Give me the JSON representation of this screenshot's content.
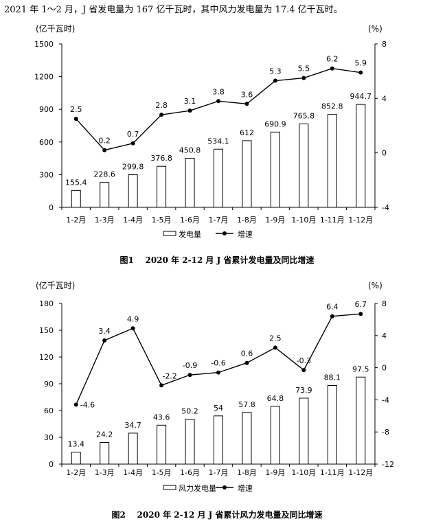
{
  "intro_text": "2021 年 1～2 月，J 省发电量为 167 亿千瓦时，其中风力发电量为 17.4 亿千瓦时。",
  "chart_data": [
    {
      "type": "bar+line",
      "title": "图1    2020 年 2-12 月 J 省累计发电量及同比增速",
      "left_unit": "(亿千瓦时)",
      "right_unit": "(%)",
      "categories": [
        "1-2月",
        "1-3月",
        "1-4月",
        "1-5月",
        "1-6月",
        "1-7月",
        "1-8月",
        "1-9月",
        "1-10月",
        "1-11月",
        "1-12月"
      ],
      "series": [
        {
          "name": "发电量",
          "kind": "bar",
          "axis": "left",
          "values": [
            155.4,
            228.6,
            299.8,
            376.8,
            450.8,
            534.1,
            612,
            690.9,
            765.8,
            852.8,
            944.7
          ],
          "labels": [
            "155.4",
            "228.6",
            "299.8",
            "376.8",
            "450.8",
            "534.1",
            "612",
            "690.9",
            "765.8",
            "852.8",
            "944.7"
          ]
        },
        {
          "name": "增速",
          "kind": "line",
          "axis": "right",
          "values": [
            2.5,
            0.2,
            0.7,
            2.8,
            3.1,
            3.8,
            3.6,
            5.3,
            5.5,
            6.2,
            5.9
          ],
          "labels": [
            "2.5",
            "0.2",
            "0.7",
            "2.8",
            "3.1",
            "3.8",
            "3.6",
            "5.3",
            "5.5",
            "6.2",
            "5.9"
          ]
        }
      ],
      "y_left": {
        "range": [
          0,
          1500
        ],
        "ticks": [
          "0",
          "300",
          "600",
          "900",
          "1200",
          "1500"
        ]
      },
      "y_right": {
        "range": [
          -4,
          8
        ],
        "ticks": [
          "-4",
          "0",
          "4",
          "8"
        ]
      },
      "legend": "bottom-center",
      "grid": false
    },
    {
      "type": "bar+line",
      "title": "图2    2020 年 2-12 月 J 省累计风力发电量及同比增速",
      "left_unit": "(亿千瓦时)",
      "right_unit": "(%)",
      "categories": [
        "1-2月",
        "1-3月",
        "1-4月",
        "1-5月",
        "1-6月",
        "1-7月",
        "1-8月",
        "1-9月",
        "1-10月",
        "1-11月",
        "1-12月"
      ],
      "series": [
        {
          "name": "风力发电量",
          "kind": "bar",
          "axis": "left",
          "values": [
            13.4,
            24.2,
            34.7,
            43.6,
            50.2,
            54,
            57.8,
            64.8,
            73.9,
            88.1,
            97.5
          ],
          "labels": [
            "13.4",
            "24.2",
            "34.7",
            "43.6",
            "50.2",
            "54",
            "57.8",
            "64.8",
            "73.9",
            "88.1",
            "97.5"
          ]
        },
        {
          "name": "增速",
          "kind": "line",
          "axis": "right",
          "values": [
            -4.6,
            3.4,
            4.9,
            -2.2,
            -0.9,
            -0.6,
            0.6,
            2.5,
            -0.3,
            6.4,
            6.7
          ],
          "labels": [
            "-4.6",
            "3.4",
            "4.9",
            "-2.2",
            "-0.9",
            "-0.6",
            "0.6",
            "2.5",
            "-0.3",
            "6.4",
            "6.7"
          ]
        }
      ],
      "y_left": {
        "range": [
          0,
          180
        ],
        "ticks": [
          "0",
          "30",
          "60",
          "90",
          "120",
          "150",
          "180"
        ]
      },
      "y_right": {
        "range": [
          -12,
          8
        ],
        "ticks": [
          "-12",
          "-8",
          "-4",
          "0",
          "4",
          "8"
        ]
      },
      "legend": "bottom-center",
      "grid": false
    }
  ]
}
